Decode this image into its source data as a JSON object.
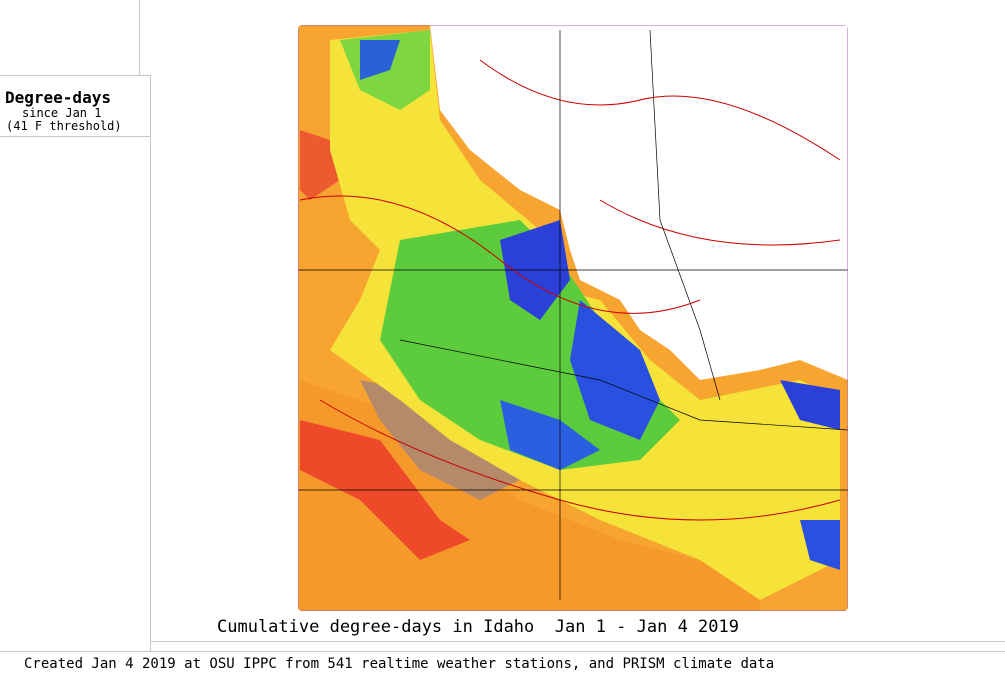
{
  "legend": {
    "title": "Degree-days",
    "subtitle": "since Jan 1",
    "threshold": "(41 F threshold)"
  },
  "map": {
    "title": "Cumulative degree-days in Idaho  Jan 1 - Jan 4 2019"
  },
  "footer": {
    "credit": "Created Jan 4 2019 at OSU IPPC from 541 realtime weather stations, and PRISM climate data"
  }
}
